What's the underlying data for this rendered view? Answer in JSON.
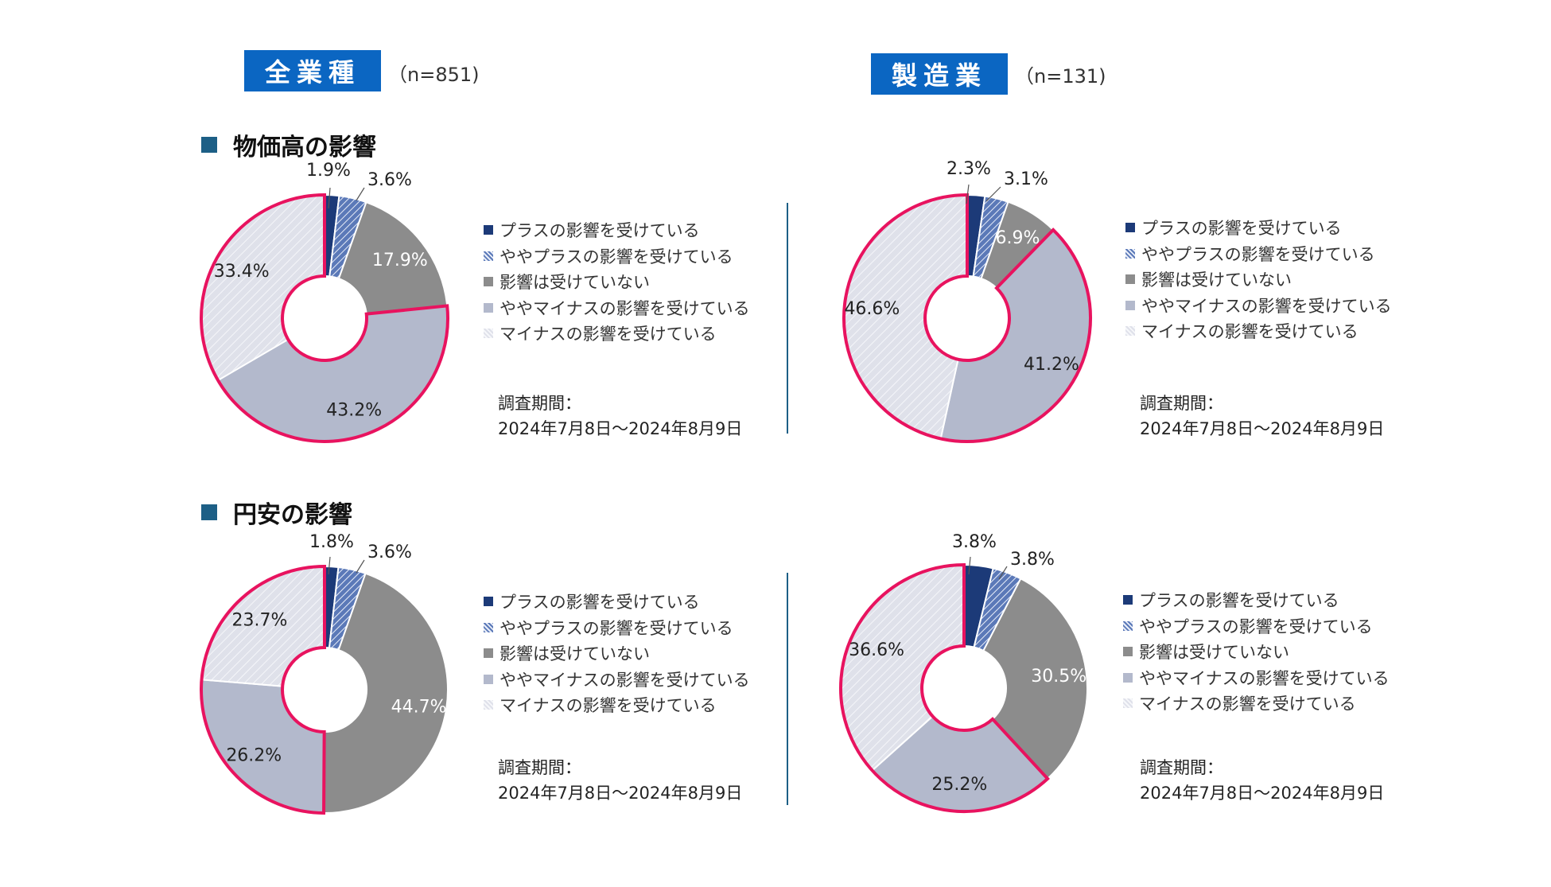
{
  "headers": {
    "left": {
      "badge": "全業種",
      "n": "（n=851)"
    },
    "right": {
      "badge": "製造業",
      "n": "（n=131)"
    }
  },
  "sections": {
    "top": {
      "title": "物価高の影響"
    },
    "bottom": {
      "title": "円安の影響"
    }
  },
  "legend_labels": [
    "プラスの影響を受けている",
    "ややプラスの影響を受けている",
    "影響は受けていない",
    "ややマイナスの影響を受けている",
    "マイナスの影響を受けている"
  ],
  "survey": {
    "label": "調査期間：",
    "period": "2024年7月8日～2024年8月9日"
  },
  "colors": {
    "plus": "#1c3a78",
    "slight_plus": "#5b79b8",
    "none": "#8c8c8c",
    "slight_minus": "#b3b9cc",
    "minus": "#dfe1ea",
    "highlight": "#e8135f",
    "accent": "#0b66c2"
  },
  "chart_data": [
    {
      "type": "pie",
      "variant": "donut",
      "title": "物価高の影響 全業種",
      "categories": [
        "プラスの影響を受けている",
        "ややプラスの影響を受けている",
        "影響は受けていない",
        "ややマイナスの影響を受けている",
        "マイナスの影響を受けている"
      ],
      "values": [
        1.9,
        3.6,
        17.9,
        43.2,
        33.4
      ],
      "labels": [
        "1.9%",
        "3.6%",
        "17.9%",
        "43.2%",
        "33.4%"
      ]
    },
    {
      "type": "pie",
      "variant": "donut",
      "title": "物価高の影響 製造業",
      "categories": [
        "プラスの影響を受けている",
        "ややプラスの影響を受けている",
        "影響は受けていない",
        "ややマイナスの影響を受けている",
        "マイナスの影響を受けている"
      ],
      "values": [
        2.3,
        3.1,
        6.9,
        41.2,
        46.6
      ],
      "labels": [
        "2.3%",
        "3.1%",
        "6.9%",
        "41.2%",
        "46.6%"
      ]
    },
    {
      "type": "pie",
      "variant": "donut",
      "title": "円安の影響 全業種",
      "categories": [
        "プラスの影響を受けている",
        "ややプラスの影響を受けている",
        "影響は受けていない",
        "ややマイナスの影響を受けている",
        "マイナスの影響を受けている"
      ],
      "values": [
        1.8,
        3.6,
        44.7,
        26.2,
        23.7
      ],
      "labels": [
        "1.8%",
        "3.6%",
        "44.7%",
        "26.2%",
        "23.7%"
      ]
    },
    {
      "type": "pie",
      "variant": "donut",
      "title": "円安の影響 製造業",
      "categories": [
        "プラスの影響を受けている",
        "ややプラスの影響を受けている",
        "影響は受けていない",
        "ややマイナスの影響を受けている",
        "マイナスの影響を受けている"
      ],
      "values": [
        3.8,
        3.8,
        30.5,
        25.2,
        36.6
      ],
      "labels": [
        "3.8%",
        "3.8%",
        "30.5%",
        "25.2%",
        "36.6%"
      ]
    }
  ]
}
